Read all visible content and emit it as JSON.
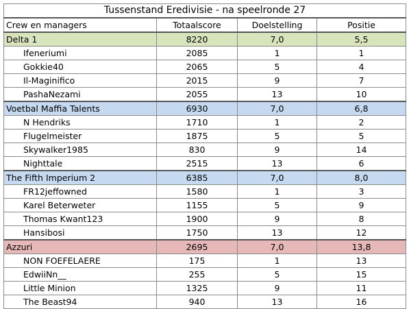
{
  "title": "Tussenstand Eredivisie - na speelronde 27",
  "headers": [
    "Crew en managers",
    "Totaalscore",
    "Doelstelling",
    "Positie"
  ],
  "groups": [
    {
      "crew": [
        "Delta 1",
        "8220",
        "7,0",
        "5,5"
      ],
      "color": "#d8e4bc",
      "managers": [
        [
          "Ifeneriumi",
          "2085",
          "1",
          "1"
        ],
        [
          "Gokkie40",
          "2065",
          "5",
          "4"
        ],
        [
          "Il-Maginifico",
          "2015",
          "9",
          "7"
        ],
        [
          "PashaNezami",
          "2055",
          "13",
          "10"
        ]
      ]
    },
    {
      "crew": [
        "Voetbal Maffia Talents",
        "6930",
        "7,0",
        "6,8"
      ],
      "color": "#c5d9f1",
      "managers": [
        [
          "N Hendriks",
          "1710",
          "1",
          "2"
        ],
        [
          "Flugelmeister",
          "1875",
          "5",
          "5"
        ],
        [
          "Skywalker1985",
          "830",
          "9",
          "14"
        ],
        [
          "Nighttale",
          "2515",
          "13",
          "6"
        ]
      ]
    },
    {
      "crew": [
        "The Fifth Imperium 2",
        "6385",
        "7,0",
        "8,0"
      ],
      "color": "#c5d9f1",
      "managers": [
        [
          "FR12jeffowned",
          "1580",
          "1",
          "3"
        ],
        [
          "Karel Beterweter",
          "1155",
          "5",
          "9"
        ],
        [
          "Thomas Kwant123",
          "1900",
          "9",
          "8"
        ],
        [
          "Hansibosi",
          "1750",
          "13",
          "12"
        ]
      ]
    },
    {
      "crew": [
        "Azzuri",
        "2695",
        "7,0",
        "13,8"
      ],
      "color": "#e6b9b8",
      "managers": [
        [
          "NON FOEFELAERE",
          "175",
          "1",
          "13"
        ],
        [
          "EdwiiNn__",
          "255",
          "5",
          "15"
        ],
        [
          "Little Minion",
          "1325",
          "9",
          "11"
        ],
        [
          "The Beast94",
          "940",
          "13",
          "16"
        ]
      ]
    }
  ]
}
